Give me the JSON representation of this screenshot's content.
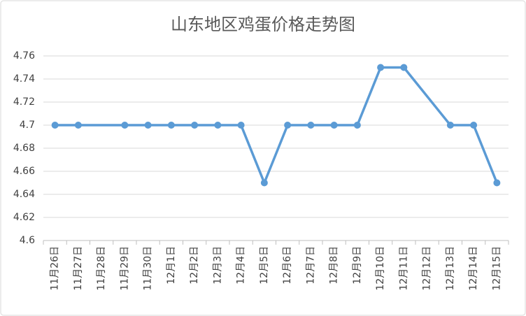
{
  "chart_data": {
    "type": "line",
    "title": "山东地区鸡蛋价格走势图",
    "categories": [
      "11月26日",
      "11月27日",
      "11月28日",
      "11月29日",
      "11月30日",
      "12月1日",
      "12月2日",
      "12月3日",
      "12月4日",
      "12月5日",
      "12月6日",
      "12月7日",
      "12月8日",
      "12月9日",
      "12月10日",
      "12月11日",
      "12月12日",
      "12月13日",
      "12月14日",
      "12月15日"
    ],
    "values": [
      4.7,
      4.7,
      null,
      4.7,
      4.7,
      4.7,
      4.7,
      4.7,
      4.7,
      4.65,
      4.7,
      4.7,
      4.7,
      4.7,
      4.75,
      4.75,
      null,
      4.7,
      4.7,
      4.65
    ],
    "color": "#5b9bd5",
    "ylim": [
      4.6,
      4.76
    ],
    "yticks": [
      4.6,
      4.62,
      4.64,
      4.66,
      4.68,
      4.7,
      4.72,
      4.74,
      4.76
    ],
    "grid": true
  }
}
